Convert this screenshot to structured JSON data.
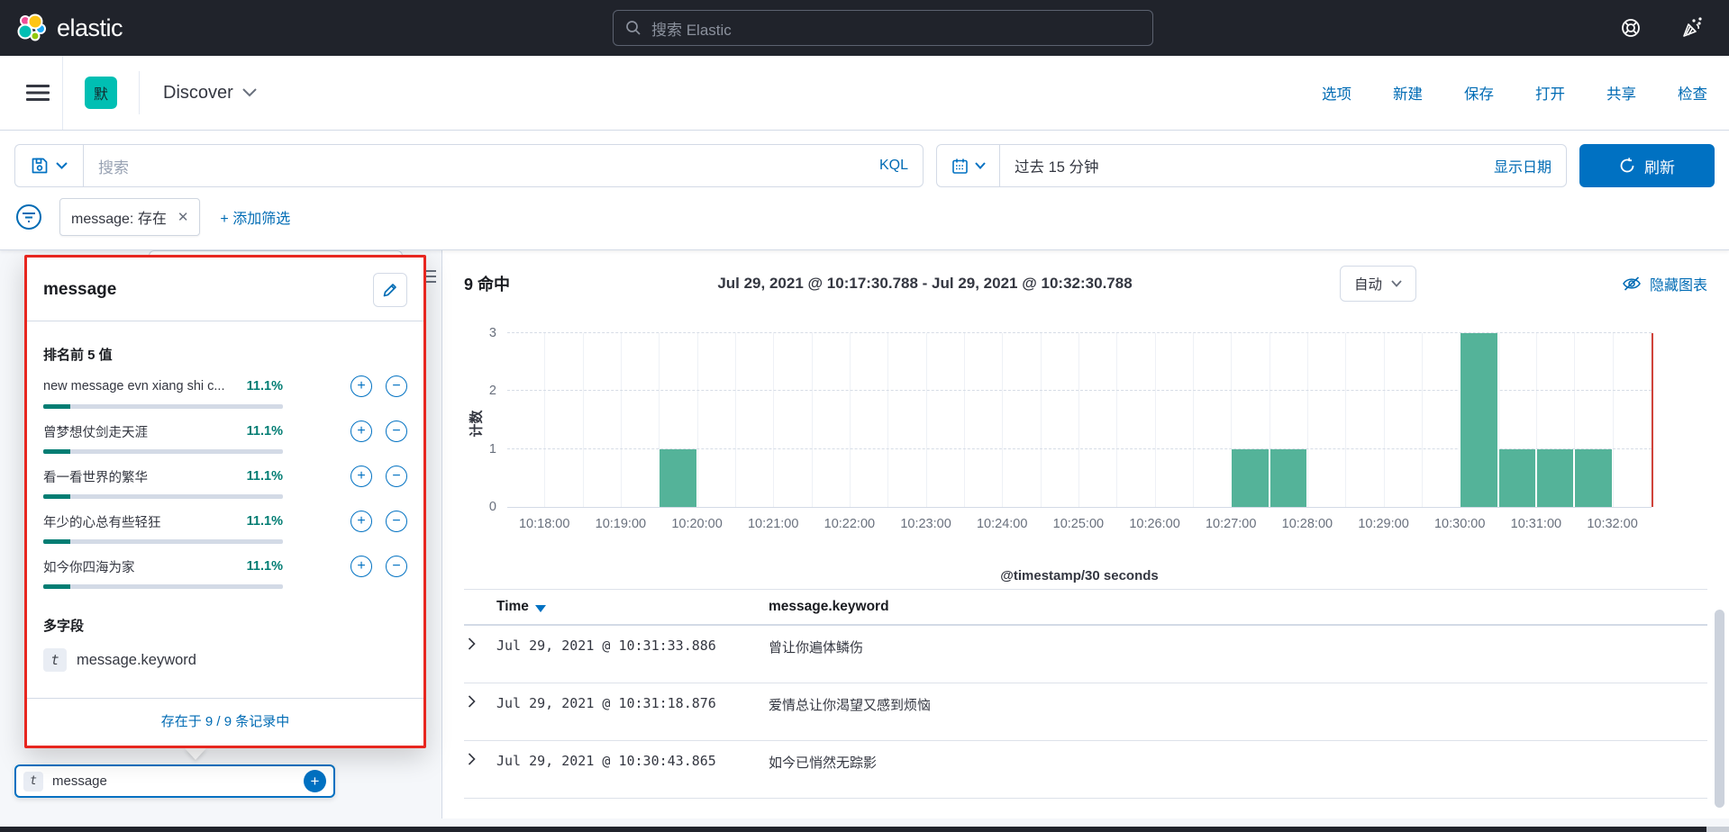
{
  "colors": {
    "header_bg": "#20232b",
    "primary_blue": "#0071c2",
    "link_blue": "#006bb4",
    "accent_teal": "#00bfb3",
    "bar_green": "#54b399",
    "progress_teal": "#017d73",
    "now_line_red": "#d0433b",
    "highlight_red": "#e7261f"
  },
  "top_bar": {
    "brand": "elastic",
    "search_placeholder": "搜索 Elastic"
  },
  "nav_bar": {
    "space_badge": "默",
    "breadcrumb": "Discover",
    "actions": [
      "选项",
      "新建",
      "保存",
      "打开",
      "共享",
      "检查"
    ]
  },
  "query_bar": {
    "search_placeholder": "搜索",
    "language_label": "KQL",
    "time_range": "过去 15 分钟",
    "show_dates_label": "显示日期",
    "refresh_label": "刷新"
  },
  "filter_bar": {
    "filter_pill_label": "message: 存在",
    "add_filter_label": "+ 添加筛选"
  },
  "field_popover": {
    "field_name": "message",
    "top_values_title": "排名前 5 值",
    "values": [
      {
        "label": "new message evn xiang shi c...",
        "percent": "11.1%",
        "fill": 11.1
      },
      {
        "label": "曾梦想仗剑走天涯",
        "percent": "11.1%",
        "fill": 11.1
      },
      {
        "label": "看一看世界的繁华",
        "percent": "11.1%",
        "fill": 11.1
      },
      {
        "label": "年少的心总有些轻狂",
        "percent": "11.1%",
        "fill": 11.1
      },
      {
        "label": "如今你四海为家",
        "percent": "11.1%",
        "fill": 11.1
      }
    ],
    "multi_fields_title": "多字段",
    "multi_field": {
      "type_token": "t",
      "name": "message.keyword"
    },
    "exists_label": "存在于 9 / 9 条记录中",
    "anchor_field": {
      "type_token": "t",
      "name": "message"
    }
  },
  "results_header": {
    "hits_count": "9",
    "hits_label": "命中",
    "time_range_display": "Jul 29, 2021 @ 10:17:30.788 - Jul 29, 2021 @ 10:32:30.788",
    "interval_label": "自动",
    "hide_chart_label": "隐藏图表"
  },
  "chart_data": {
    "type": "bar",
    "ylabel": "计数",
    "xlabel": "@timestamp/30 seconds",
    "ylim": [
      0,
      3
    ],
    "yticks": [
      0,
      1,
      2,
      3
    ],
    "x_range": [
      "10:17:30.788",
      "10:32:30.788"
    ],
    "xticks": [
      "10:18:00",
      "10:19:00",
      "10:20:00",
      "10:21:00",
      "10:22:00",
      "10:23:00",
      "10:24:00",
      "10:25:00",
      "10:26:00",
      "10:27:00",
      "10:28:00",
      "10:29:00",
      "10:30:00",
      "10:31:00",
      "10:32:00"
    ],
    "bucket_seconds": 30,
    "buckets": [
      {
        "start": "10:19:30",
        "count": 1
      },
      {
        "start": "10:27:00",
        "count": 1
      },
      {
        "start": "10:27:30",
        "count": 1
      },
      {
        "start": "10:30:00",
        "count": 3
      },
      {
        "start": "10:30:30",
        "count": 1
      },
      {
        "start": "10:31:00",
        "count": 1
      },
      {
        "start": "10:31:30",
        "count": 1
      }
    ],
    "now_marker": "10:32:30.788",
    "grid": true,
    "bar_color": "#54b399",
    "legend": "off"
  },
  "doc_table": {
    "columns": [
      "Time",
      "message.keyword"
    ],
    "sort_column": "Time",
    "rows": [
      {
        "time": "Jul 29, 2021 @ 10:31:33.886",
        "message": "曾让你遍体鳞伤"
      },
      {
        "time": "Jul 29, 2021 @ 10:31:18.876",
        "message": "爱情总让你渴望又感到烦恼"
      },
      {
        "time": "Jul 29, 2021 @ 10:30:43.865",
        "message": "如今已悄然无踪影"
      }
    ]
  }
}
